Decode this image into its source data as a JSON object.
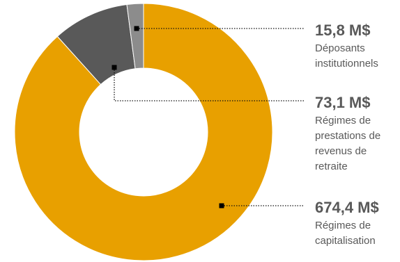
{
  "chart_data": {
    "type": "pie",
    "variant": "donut",
    "series": [
      {
        "value": 674.4,
        "value_label": "674,4 M$",
        "label_lines": [
          "Régimes de",
          "capitalisation"
        ],
        "color": "#E8A000"
      },
      {
        "value": 73.1,
        "value_label": "73,1 M$",
        "label_lines": [
          "Régimes de",
          "prestations de",
          "revenus de",
          "retraite"
        ],
        "color": "#595959"
      },
      {
        "value": 15.8,
        "value_label": "15,8 M$",
        "label_lines": [
          "Déposants",
          "institutionnels"
        ],
        "color": "#8C8C8C"
      }
    ],
    "unit": "M$",
    "legend": "none",
    "start_angle": "12 o'clock",
    "direction": "clockwise"
  }
}
